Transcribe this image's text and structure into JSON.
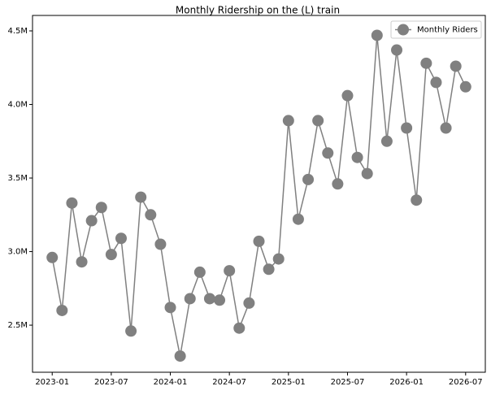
{
  "chart_data": {
    "type": "line",
    "title": "Monthly Ridership on the (L) train",
    "x": [
      "2023-01",
      "2023-02",
      "2023-03",
      "2023-04",
      "2023-05",
      "2023-06",
      "2023-07",
      "2023-08",
      "2023-09",
      "2023-10",
      "2023-11",
      "2023-12",
      "2024-01",
      "2024-02",
      "2024-03",
      "2024-04",
      "2024-05",
      "2024-06",
      "2024-07",
      "2024-08",
      "2024-09",
      "2024-10",
      "2024-11",
      "2024-12",
      "2025-01",
      "2025-02",
      "2025-03",
      "2025-04",
      "2025-05",
      "2025-06",
      "2025-07",
      "2025-08",
      "2025-09",
      "2025-10",
      "2025-11",
      "2025-12",
      "2026-01",
      "2026-02",
      "2026-03",
      "2026-04",
      "2026-05",
      "2026-06",
      "2026-07"
    ],
    "series": [
      {
        "name": "Monthly Riders",
        "color": "#808080",
        "values": [
          2960000,
          2600000,
          3330000,
          2930000,
          3210000,
          3300000,
          2980000,
          3090000,
          2460000,
          3370000,
          3250000,
          3050000,
          2620000,
          2290000,
          2680000,
          2860000,
          2680000,
          2670000,
          2870000,
          2480000,
          2650000,
          3070000,
          2880000,
          2950000,
          3890000,
          3220000,
          3490000,
          3890000,
          3670000,
          3460000,
          4060000,
          3640000,
          3530000,
          4470000,
          3750000,
          4370000,
          3840000,
          3350000,
          4280000,
          4150000,
          3840000,
          4260000,
          4120000
        ]
      }
    ],
    "xlim": [
      "2022-11",
      "2026-09"
    ],
    "xticks": [
      "2023-01",
      "2023-07",
      "2024-01",
      "2024-07",
      "2025-01",
      "2025-07",
      "2026-01",
      "2026-07"
    ],
    "ylim": [
      2180000,
      4605000
    ],
    "yticks": [
      {
        "value": 2500000,
        "label": "2.5M"
      },
      {
        "value": 3000000,
        "label": "3.0M"
      },
      {
        "value": 3500000,
        "label": "3.5M"
      },
      {
        "value": 4000000,
        "label": "4.0M"
      },
      {
        "value": 4500000,
        "label": "4.5M"
      }
    ],
    "legend": "upper right",
    "grid": false
  }
}
